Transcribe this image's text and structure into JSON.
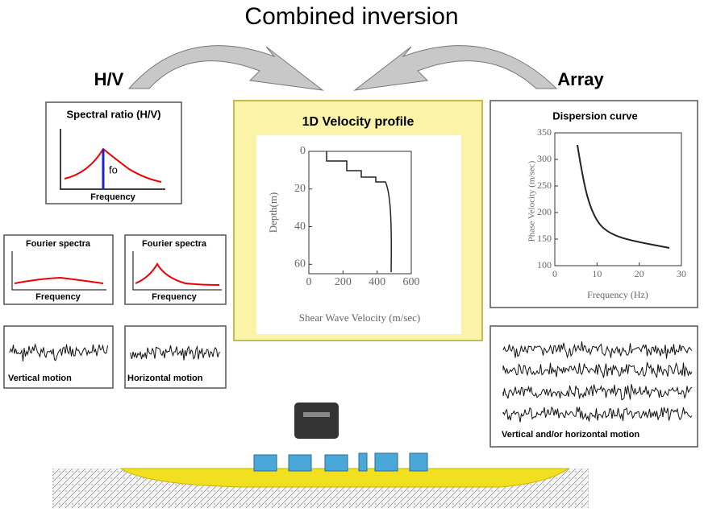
{
  "title": "Combined inversion",
  "hv": {
    "label": "H/V",
    "spectral_ratio": {
      "title": "Spectral ratio (H/V)",
      "peak_label": "fo",
      "x_label": "Frequency"
    },
    "fourier_vertical": {
      "title": "Fourier spectra",
      "x_label": "Frequency"
    },
    "fourier_horizontal": {
      "title": "Fourier spectra",
      "x_label": "Frequency"
    },
    "vertical_motion": {
      "label": "Vertical motion"
    },
    "horizontal_motion": {
      "label": "Horizontal motion"
    }
  },
  "velocity_profile": {
    "title": "1D Velocity profile",
    "x_label": "Shear Wave Velocity (m/sec)",
    "y_label": "Depth(m)",
    "xlim": [
      0,
      600
    ],
    "xticks": [
      0,
      200,
      400,
      600
    ],
    "ylim": [
      0,
      65
    ],
    "yticks": [
      0,
      20,
      40,
      60
    ]
  },
  "array": {
    "label": "Array",
    "dispersion_curve": {
      "title": "Dispersion curve",
      "x_label": "Frequency (Hz)",
      "y_label": "Phase Velocity (m/sec)",
      "xlim": [
        0,
        30
      ],
      "xticks": [
        0,
        10,
        20,
        30
      ],
      "ylim": [
        100,
        350
      ],
      "yticks": [
        100,
        150,
        200,
        250,
        300,
        350
      ]
    },
    "waveforms": {
      "label": "Vertical and/or horizontal motion"
    }
  }
}
